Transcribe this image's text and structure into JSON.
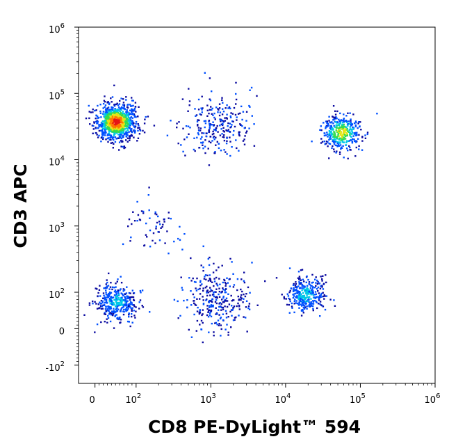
{
  "chart_data": {
    "type": "scatter",
    "plot_style": "flow-cytometry density dot plot",
    "xlabel": "CD8 PE-DyLight™ 594",
    "ylabel": "CD3 APC",
    "x_scale": "biexponential (logicle)",
    "y_scale": "biexponential (logicle)",
    "xlim": [
      -40,
      1000000
    ],
    "ylim": [
      -150,
      1000000
    ],
    "grid": false,
    "legend": "none",
    "x_ticks": [
      {
        "value": 0,
        "base": "0",
        "exp": ""
      },
      {
        "value": 100,
        "base": "10",
        "exp": "2"
      },
      {
        "value": 1000,
        "base": "10",
        "exp": "3"
      },
      {
        "value": 10000,
        "base": "10",
        "exp": "4"
      },
      {
        "value": 100000,
        "base": "10",
        "exp": "5"
      },
      {
        "value": 1000000,
        "base": "10",
        "exp": "6"
      }
    ],
    "y_ticks": [
      {
        "value": -100,
        "base": "-10",
        "exp": "2"
      },
      {
        "value": 0,
        "base": "0",
        "exp": ""
      },
      {
        "value": 100,
        "base": "10",
        "exp": "2"
      },
      {
        "value": 1000,
        "base": "10",
        "exp": "3"
      },
      {
        "value": 10000,
        "base": "10",
        "exp": "4"
      },
      {
        "value": 100000,
        "base": "10",
        "exp": "5"
      },
      {
        "value": 1000000,
        "base": "10",
        "exp": "6"
      }
    ],
    "populations": [
      {
        "x": 50,
        "y": 38000,
        "count": 950,
        "peak": "red"
      },
      {
        "x": 55000,
        "y": 26000,
        "count": 380,
        "peak": "yellow"
      },
      {
        "x": 50,
        "y": 75,
        "count": 380,
        "peak": "cyan"
      },
      {
        "x": 18000,
        "y": 95,
        "count": 330,
        "peak": "cyan"
      },
      {
        "x": 1200,
        "y": 35000,
        "count": 260,
        "peak": "blue"
      },
      {
        "x": 1200,
        "y": 80,
        "count": 300,
        "peak": "blue"
      },
      {
        "x": 150,
        "y": 1000,
        "count": 60,
        "peak": "blue"
      }
    ],
    "density_colors": [
      "#0a0aa0",
      "#0050ff",
      "#00c8e6",
      "#32dc50",
      "#e6e614",
      "#ff7800",
      "#e61414"
    ]
  }
}
